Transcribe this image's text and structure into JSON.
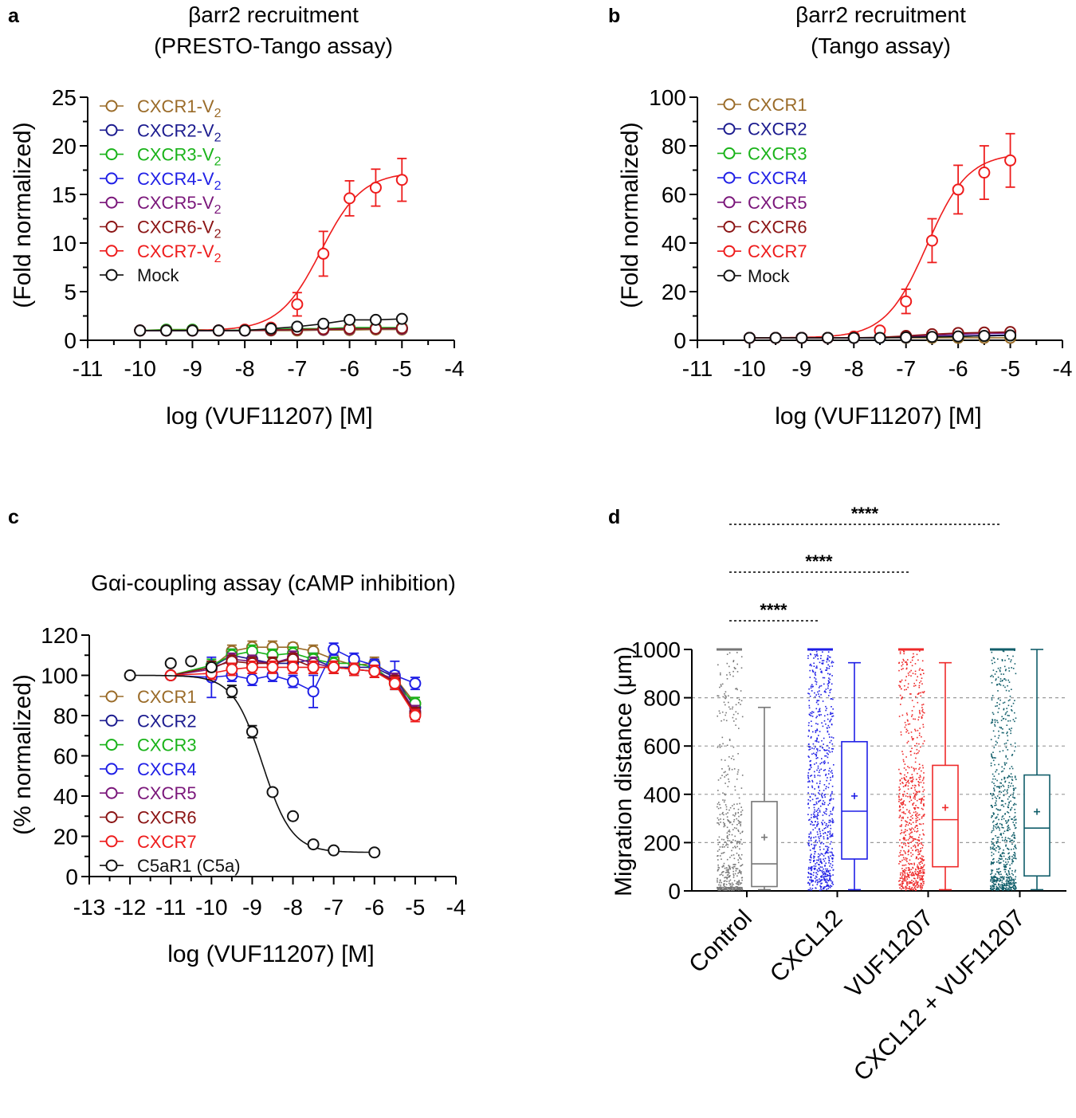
{
  "chart_data": [
    {
      "panel": "a",
      "type": "line",
      "title": [
        "βarr2 recruitment",
        "(PRESTO-Tango assay)"
      ],
      "xlabel": "log (VUF11207) [M]",
      "ylabel": "(Fold normalized)",
      "xlim": [
        -11,
        -4
      ],
      "ylim": [
        0,
        25
      ],
      "xticks": [
        "-11",
        "-10",
        "-9",
        "-8",
        "-7",
        "-6",
        "-5",
        "-4"
      ],
      "yticks": [
        "0",
        "5",
        "10",
        "15",
        "20",
        "25"
      ],
      "legend": "top-left",
      "x": [
        -10,
        -9.5,
        -9,
        -8.5,
        -8,
        -7.5,
        -7,
        -6.5,
        -6,
        -5.5,
        -5
      ],
      "series": [
        {
          "name": "CXCR1-V",
          "sub": "2",
          "color": "#9a6b28",
          "values": [
            1.0,
            1.0,
            1.0,
            1.0,
            1.0,
            1.0,
            1.0,
            1.05,
            1.05,
            1.1,
            1.1
          ]
        },
        {
          "name": "CXCR2-V",
          "sub": "2",
          "color": "#1b1b8f",
          "values": [
            1.0,
            1.0,
            1.0,
            1.0,
            1.05,
            1.05,
            1.1,
            1.1,
            1.2,
            1.2,
            1.2
          ]
        },
        {
          "name": "CXCR3-V",
          "sub": "2",
          "color": "#19b319",
          "values": [
            1.0,
            1.1,
            1.1,
            1.0,
            1.05,
            1.1,
            1.2,
            1.2,
            1.3,
            1.3,
            1.3
          ]
        },
        {
          "name": "CXCR4-V",
          "sub": "2",
          "color": "#1f1fe6",
          "values": [
            1.0,
            1.0,
            1.0,
            1.0,
            1.0,
            1.05,
            1.1,
            1.15,
            1.2,
            1.2,
            1.25
          ]
        },
        {
          "name": "CXCR5-V",
          "sub": "2",
          "color": "#7a167a",
          "values": [
            1.0,
            1.0,
            1.0,
            1.0,
            1.0,
            1.05,
            1.1,
            1.1,
            1.15,
            1.2,
            1.2
          ]
        },
        {
          "name": "CXCR6-V",
          "sub": "2",
          "color": "#8b1414",
          "values": [
            1.0,
            1.0,
            1.0,
            1.0,
            1.0,
            1.05,
            1.1,
            1.15,
            1.2,
            1.2,
            1.25
          ]
        },
        {
          "name": "CXCR7-V",
          "sub": "2",
          "color": "#ee1c1c",
          "values": [
            1.0,
            1.0,
            1.0,
            1.0,
            1.1,
            1.3,
            3.7,
            8.9,
            14.6,
            15.7,
            16.5
          ],
          "err": [
            0,
            0,
            0,
            0,
            0.2,
            0.3,
            1.2,
            2.3,
            1.8,
            1.9,
            2.2
          ],
          "fit": {
            "bottom": 1.0,
            "top": 17.3,
            "logEC50": -6.55,
            "hill": 1.1
          }
        },
        {
          "name": "Mock",
          "sub": "",
          "color": "#111111",
          "values": [
            1.0,
            1.0,
            1.0,
            1.0,
            1.0,
            1.2,
            1.4,
            1.7,
            2.1,
            2.1,
            2.2
          ]
        }
      ]
    },
    {
      "panel": "b",
      "type": "line",
      "title": [
        "βarr2 recruitment",
        "(Tango assay)"
      ],
      "xlabel": "log (VUF11207) [M]",
      "ylabel": "(Fold normalized)",
      "xlim": [
        -11,
        -4
      ],
      "ylim": [
        0,
        100
      ],
      "xticks": [
        "-11",
        "-10",
        "-9",
        "-8",
        "-7",
        "-6",
        "-5",
        "-4"
      ],
      "yticks": [
        "0",
        "20",
        "40",
        "60",
        "80",
        "100"
      ],
      "legend": "top-left",
      "x": [
        -10,
        -9.5,
        -9,
        -8.5,
        -8,
        -7.5,
        -7,
        -6.5,
        -6,
        -5.5,
        -5
      ],
      "series": [
        {
          "name": "CXCR1",
          "sub": "",
          "color": "#9a6b28",
          "values": [
            1,
            1,
            1,
            1,
            1,
            1,
            1,
            1,
            1,
            1,
            1
          ]
        },
        {
          "name": "CXCR2",
          "sub": "",
          "color": "#1b1b8f",
          "values": [
            1,
            1,
            1,
            1,
            1,
            1,
            1.2,
            1.4,
            1.6,
            1.8,
            2.0
          ]
        },
        {
          "name": "CXCR3",
          "sub": "",
          "color": "#19b319",
          "values": [
            1,
            1,
            1,
            1,
            1,
            1,
            1.2,
            1.4,
            1.6,
            1.8,
            2.0
          ]
        },
        {
          "name": "CXCR4",
          "sub": "",
          "color": "#1f1fe6",
          "values": [
            1,
            1,
            1,
            1,
            1,
            1,
            1.2,
            1.5,
            1.8,
            2.0,
            2.2
          ]
        },
        {
          "name": "CXCR5",
          "sub": "",
          "color": "#7a167a",
          "values": [
            1,
            1,
            1,
            1,
            1,
            1.1,
            1.5,
            2.0,
            2.5,
            2.8,
            3.0
          ]
        },
        {
          "name": "CXCR6",
          "sub": "",
          "color": "#8b1414",
          "values": [
            1,
            1,
            1,
            1,
            1,
            1.2,
            1.8,
            2.5,
            3.0,
            3.2,
            3.4
          ]
        },
        {
          "name": "CXCR7",
          "sub": "",
          "color": "#ee1c1c",
          "values": [
            1,
            1,
            1,
            1,
            1.5,
            4,
            16,
            41,
            62,
            69,
            74
          ],
          "err": [
            0,
            0,
            0,
            0,
            0.5,
            1,
            5,
            9,
            10,
            11,
            11
          ],
          "fit": {
            "bottom": 1.0,
            "top": 77,
            "logEC50": -6.6,
            "hill": 1.1
          }
        },
        {
          "name": "Mock",
          "sub": "",
          "color": "#111111",
          "values": [
            1,
            1,
            1,
            1,
            1,
            1,
            1.2,
            1.4,
            1.6,
            1.8,
            2.0
          ]
        }
      ]
    },
    {
      "panel": "c",
      "type": "line",
      "title": [
        "Gαi-coupling assay (cAMP inhibition)"
      ],
      "xlabel": "log (VUF11207) [M]",
      "ylabel": "(% normalized)",
      "xlim": [
        -13,
        -4
      ],
      "ylim": [
        0,
        120
      ],
      "xticks": [
        "-13",
        "-12",
        "-11",
        "-10",
        "-9",
        "-8",
        "-7",
        "-6",
        "-5",
        "-4"
      ],
      "yticks": [
        "0",
        "20",
        "40",
        "60",
        "80",
        "100",
        "120"
      ],
      "legend": "bottom-left",
      "series": [
        {
          "name": "CXCR1",
          "color": "#9a6b28",
          "x": [
            -11,
            -10,
            -9.5,
            -9,
            -8.5,
            -8,
            -7.5,
            -7,
            -6.5,
            -6,
            -5.5,
            -5
          ],
          "values": [
            100,
            104,
            112,
            114,
            114,
            114,
            112,
            108,
            105,
            106,
            99,
            86
          ],
          "err": [
            0,
            3,
            3,
            3,
            3,
            2,
            3,
            3,
            2,
            3,
            3,
            3
          ]
        },
        {
          "name": "CXCR2",
          "color": "#1b1b8f",
          "x": [
            -11,
            -10,
            -9.5,
            -9,
            -8.5,
            -8,
            -7.5,
            -7,
            -6.5,
            -6,
            -5.5,
            -5
          ],
          "values": [
            100,
            104,
            110,
            108,
            106,
            106,
            108,
            104,
            104,
            104,
            99,
            84
          ],
          "err": [
            0,
            3,
            3,
            3,
            3,
            3,
            3,
            3,
            3,
            3,
            3,
            3
          ]
        },
        {
          "name": "CXCR3",
          "color": "#19b319",
          "x": [
            -11,
            -10,
            -9.5,
            -9,
            -8.5,
            -8,
            -7.5,
            -7,
            -6.5,
            -6,
            -5.5,
            -5
          ],
          "values": [
            100,
            105,
            110,
            112,
            110,
            111,
            108,
            106,
            106,
            104,
            96,
            86
          ],
          "err": [
            0,
            3,
            3,
            3,
            3,
            3,
            3,
            3,
            3,
            3,
            3,
            3
          ]
        },
        {
          "name": "CXCR4",
          "color": "#1f1fe6",
          "x": [
            -11,
            -10,
            -9.5,
            -9,
            -8.5,
            -8,
            -7.5,
            -7,
            -6.5,
            -6,
            -5.5,
            -5
          ],
          "values": [
            100,
            99,
            100,
            98,
            100,
            97,
            92,
            113,
            108,
            105,
            100,
            96
          ],
          "err": [
            0,
            10,
            3,
            3,
            3,
            3,
            8,
            3,
            3,
            3,
            7,
            3
          ]
        },
        {
          "name": "CXCR5",
          "color": "#7a167a",
          "x": [
            -11,
            -10,
            -9.5,
            -9,
            -8.5,
            -8,
            -7.5,
            -7,
            -6.5,
            -6,
            -5.5,
            -5
          ],
          "values": [
            100,
            103,
            108,
            107,
            106,
            109,
            106,
            104,
            103,
            102,
            98,
            82
          ],
          "err": [
            0,
            3,
            3,
            3,
            3,
            3,
            3,
            3,
            3,
            3,
            3,
            3
          ]
        },
        {
          "name": "CXCR6",
          "color": "#8b1414",
          "x": [
            -11,
            -10,
            -9.5,
            -9,
            -8.5,
            -8,
            -7.5,
            -7,
            -6.5,
            -6,
            -5.5,
            -5
          ],
          "values": [
            100,
            104,
            107,
            106,
            106,
            108,
            104,
            104,
            103,
            102,
            97,
            81
          ],
          "err": [
            0,
            3,
            3,
            3,
            3,
            3,
            3,
            3,
            3,
            3,
            3,
            3
          ]
        },
        {
          "name": "CXCR7",
          "color": "#ee1c1c",
          "x": [
            -11,
            -10,
            -9.5,
            -9,
            -8.5,
            -8,
            -7.5,
            -7,
            -6.5,
            -6,
            -5.5,
            -5
          ],
          "values": [
            100,
            101,
            103,
            104,
            104,
            104,
            104,
            104,
            103,
            102,
            96,
            80
          ],
          "err": [
            0,
            3,
            3,
            3,
            3,
            3,
            3,
            3,
            3,
            3,
            3,
            3
          ]
        },
        {
          "name": "C5aR1 (C5a)",
          "color": "#111111",
          "x": [
            -12,
            -11,
            -10.5,
            -10,
            -9.5,
            -9,
            -8.5,
            -8,
            -7.5,
            -7,
            -6
          ],
          "values": [
            100,
            106,
            107,
            104,
            92,
            72,
            42,
            30,
            16,
            13,
            12
          ],
          "err": [
            0,
            0,
            0,
            0,
            3,
            3,
            0,
            0,
            0,
            0,
            0
          ],
          "fit": {
            "bottom": 12,
            "top": 100,
            "logEC50": -8.75,
            "hill": -1.2
          }
        }
      ]
    },
    {
      "panel": "d",
      "type": "box",
      "ylabel": "Migration distance (μm)",
      "ylim": [
        0,
        1000
      ],
      "yticks": [
        "0",
        "200",
        "400",
        "600",
        "800",
        "1000"
      ],
      "grid": "dashed horizontal",
      "categories": [
        "Control",
        "CXCL12",
        "VUF11207",
        "CXCL12 + VUF11207"
      ],
      "colors": [
        "#777777",
        "#1f1fe6",
        "#ee2a2a",
        "#115e6a"
      ],
      "boxes": [
        {
          "min": 5,
          "q1": 18,
          "median": 112,
          "mean": 222,
          "q3": 370,
          "max": 760
        },
        {
          "min": 5,
          "q1": 132,
          "median": 330,
          "mean": 393,
          "q3": 618,
          "max": 945
        },
        {
          "min": 5,
          "q1": 100,
          "median": 295,
          "mean": 345,
          "q3": 520,
          "max": 945
        },
        {
          "min": 5,
          "q1": 62,
          "median": 260,
          "mean": 328,
          "q3": 480,
          "max": 1000
        }
      ],
      "significance": [
        {
          "from": "Control",
          "to": "CXCL12",
          "label": "****"
        },
        {
          "from": "Control",
          "to": "VUF11207",
          "label": "****"
        },
        {
          "from": "Control",
          "to": "CXCL12 + VUF11207",
          "label": "****"
        }
      ]
    }
  ]
}
